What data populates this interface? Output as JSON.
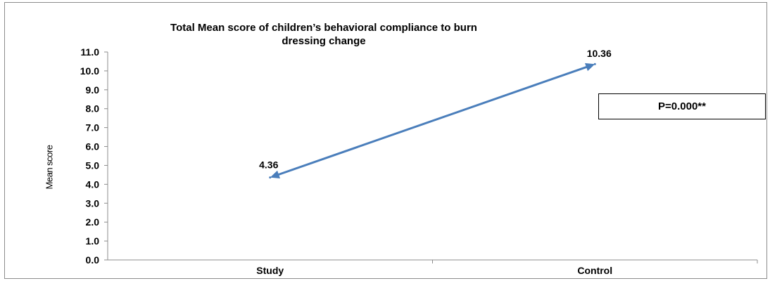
{
  "chart_data": {
    "type": "line",
    "title_lines": [
      "Total Mean score of children’s behavioral compliance to burn",
      "dressing change"
    ],
    "xlabel": "",
    "ylabel": "Mean score",
    "categories": [
      "Study",
      "Control"
    ],
    "series": [
      {
        "values": [
          4.36,
          10.36
        ],
        "data_labels": [
          "4.36",
          "10.36"
        ]
      }
    ],
    "ylim": [
      0,
      11
    ],
    "yticks": [
      "0.0",
      "1.0",
      "2.0",
      "3.0",
      "4.0",
      "5.0",
      "6.0",
      "7.0",
      "8.0",
      "9.0",
      "10.0",
      "11.0"
    ],
    "grid": false,
    "line_style": "double-arrow",
    "annotation": "P=0.000**",
    "colors": {
      "line": "#4a7ebb"
    }
  }
}
